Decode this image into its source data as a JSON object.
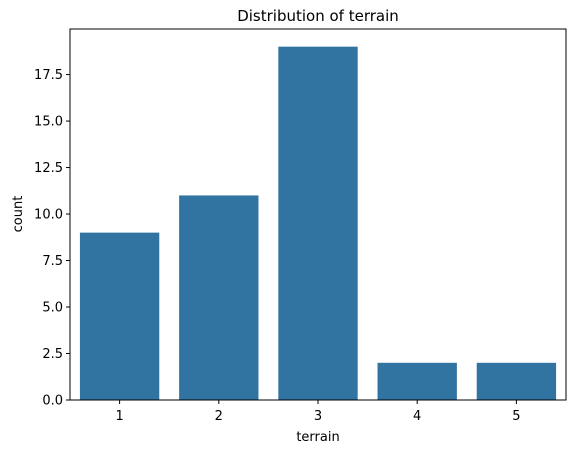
{
  "chart_data": {
    "type": "bar",
    "title": "Distribution of terrain",
    "xlabel": "terrain",
    "ylabel": "count",
    "categories": [
      "1",
      "2",
      "3",
      "4",
      "5"
    ],
    "values": [
      9,
      11,
      19,
      2,
      2
    ],
    "ylim": [
      0,
      19.95
    ],
    "yticks": [
      0,
      2.5,
      5,
      7.5,
      10,
      12.5,
      15,
      17.5
    ],
    "ytick_labels": [
      "0.0",
      "2.5",
      "5.0",
      "7.5",
      "10.0",
      "12.5",
      "15.0",
      "17.5"
    ],
    "bar_color": "#3274a1",
    "grid": false,
    "legend": "none"
  }
}
